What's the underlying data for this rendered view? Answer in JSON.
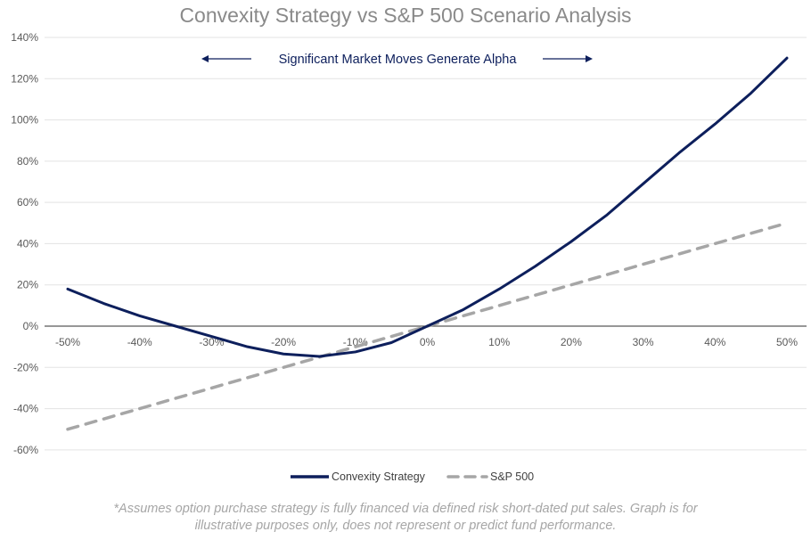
{
  "chart_data": {
    "type": "line",
    "title": "Convexity Strategy vs S&P 500 Scenario Analysis",
    "annotation": "Significant Market Moves Generate Alpha",
    "x": [
      -50,
      -45,
      -40,
      -35,
      -30,
      -25,
      -20,
      -15,
      -10,
      -5,
      0,
      5,
      10,
      15,
      20,
      25,
      30,
      35,
      40,
      45,
      50
    ],
    "x_ticks": [
      "-50%",
      "-40%",
      "-30%",
      "-20%",
      "-10%",
      "0%",
      "10%",
      "20%",
      "30%",
      "40%",
      "50%"
    ],
    "x_tick_values": [
      -50,
      -40,
      -30,
      -20,
      -10,
      0,
      10,
      20,
      30,
      40,
      50
    ],
    "y_ticks": [
      "140%",
      "120%",
      "100%",
      "80%",
      "60%",
      "40%",
      "20%",
      "0%",
      "-20%",
      "-40%",
      "-60%"
    ],
    "y_tick_values": [
      140,
      120,
      100,
      80,
      60,
      40,
      20,
      0,
      -20,
      -40,
      -60
    ],
    "xlim": [
      -50,
      50
    ],
    "ylim": [
      -60,
      140
    ],
    "grid": true,
    "legend": "bottom",
    "series": [
      {
        "name": "Convexity Strategy",
        "color": "#0d1f5c",
        "style": "solid",
        "values": [
          18,
          11,
          5,
          0,
          -5,
          -10,
          -13.5,
          -14.7,
          -12.5,
          -8,
          0,
          8,
          18,
          29,
          41,
          54,
          69,
          84,
          98,
          113,
          130
        ]
      },
      {
        "name": "S&P 500",
        "color": "#a6a6a6",
        "style": "dashed",
        "values": [
          -50,
          -45,
          -40,
          -35,
          -30,
          -25,
          -20,
          -15,
          -10,
          -5,
          0,
          5,
          10,
          15,
          20,
          25,
          30,
          35,
          40,
          45,
          50
        ]
      }
    ]
  },
  "footnote_line1": "*Assumes option purchase strategy is fully financed via defined risk short-dated put sales. Graph is for",
  "footnote_line2": "illustrative purposes only, does not represent or predict fund performance."
}
